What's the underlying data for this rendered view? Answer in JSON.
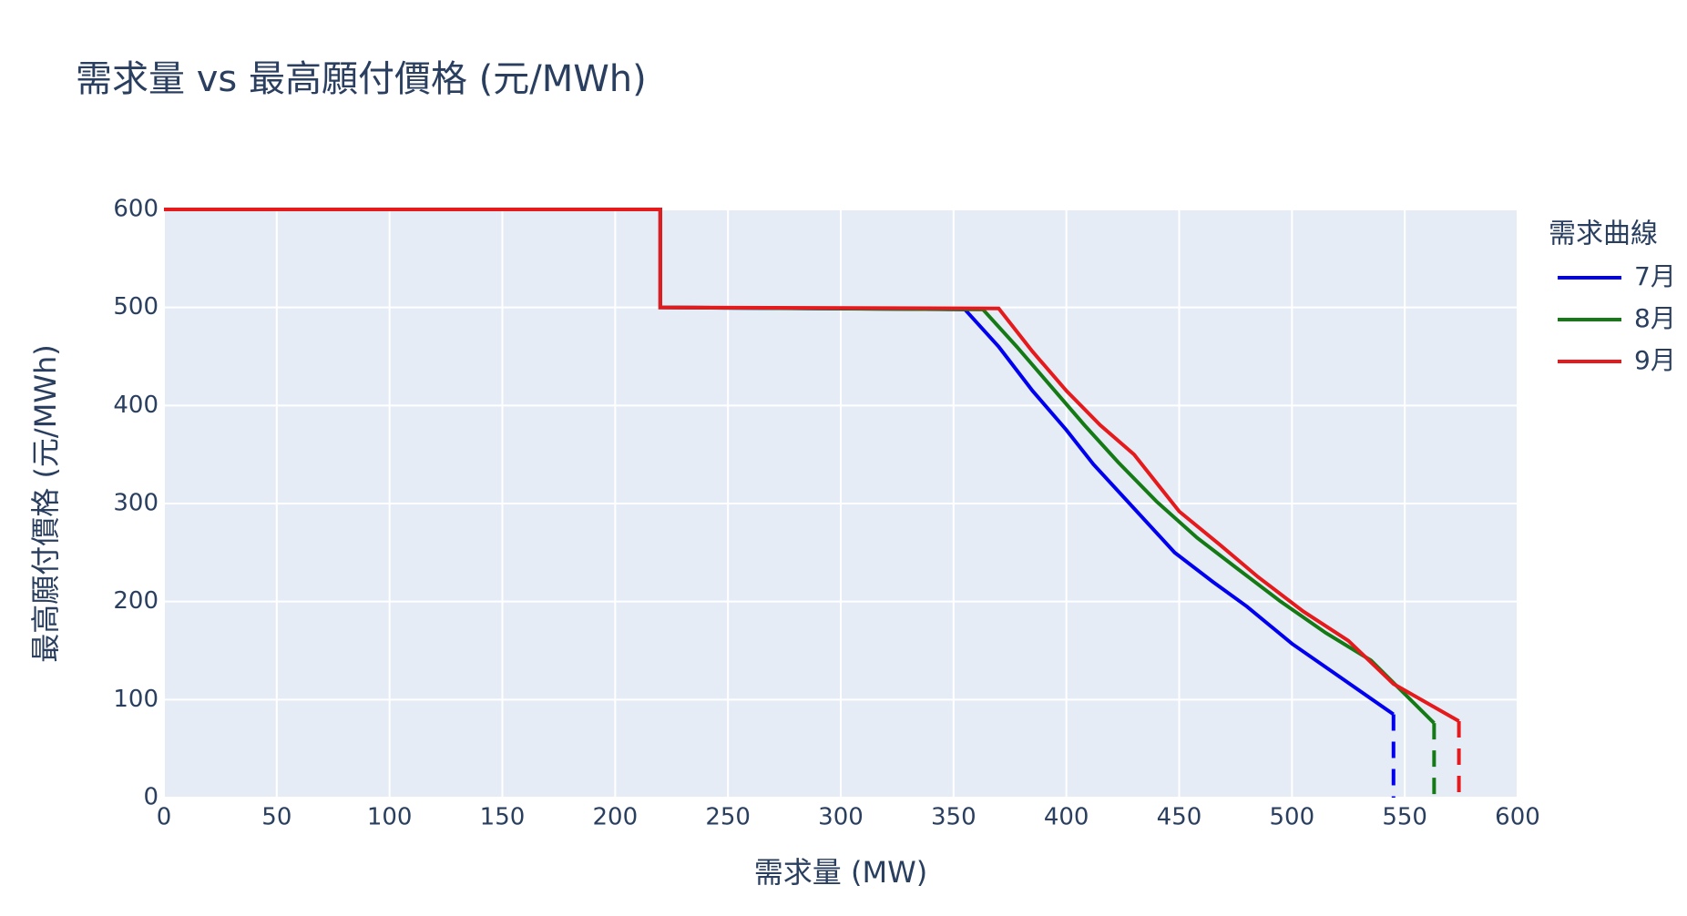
{
  "chart_data": {
    "type": "line",
    "title": "需求量 vs 最高願付價格 (元/MWh)",
    "x_label": "需求量 (MW)",
    "y_label": "最高願付價格 (元/MWh)",
    "legend_title": "需求曲線",
    "xlim": [
      0,
      600
    ],
    "ylim": [
      0,
      600
    ],
    "xticks": [
      0,
      50,
      100,
      150,
      200,
      250,
      300,
      350,
      400,
      450,
      500,
      550,
      600
    ],
    "yticks": [
      0,
      100,
      200,
      300,
      400,
      500,
      600
    ],
    "grid": true,
    "series": [
      {
        "name": "7月",
        "color": "#0000ee",
        "x": [
          0,
          220,
          220,
          355,
          370,
          385,
          400,
          412,
          430,
          448,
          465,
          480,
          500,
          520,
          545
        ],
        "values": [
          600,
          600,
          500,
          498,
          460,
          415,
          375,
          340,
          295,
          250,
          220,
          195,
          157,
          125,
          85
        ]
      },
      {
        "name": "8月",
        "color": "#157a15",
        "x": [
          0,
          220,
          220,
          363,
          378,
          393,
          408,
          423,
          440,
          458,
          475,
          495,
          515,
          535,
          563
        ],
        "values": [
          600,
          600,
          500,
          498,
          460,
          420,
          380,
          342,
          302,
          265,
          235,
          200,
          168,
          140,
          76
        ]
      },
      {
        "name": "9月",
        "color": "#e41a1c",
        "x": [
          0,
          220,
          220,
          370,
          385,
          400,
          415,
          430,
          450,
          468,
          485,
          505,
          525,
          545,
          574
        ],
        "values": [
          600,
          600,
          500,
          499,
          455,
          415,
          380,
          350,
          292,
          258,
          225,
          190,
          160,
          116,
          78
        ]
      },
      {
        "color": "#0000ee",
        "dash": true,
        "x": [
          545,
          545
        ],
        "values": [
          85,
          0
        ]
      },
      {
        "color": "#157a15",
        "dash": true,
        "x": [
          563,
          563
        ],
        "values": [
          76,
          0
        ]
      },
      {
        "color": "#e41a1c",
        "dash": true,
        "x": [
          574,
          574
        ],
        "values": [
          78,
          0
        ]
      }
    ]
  }
}
